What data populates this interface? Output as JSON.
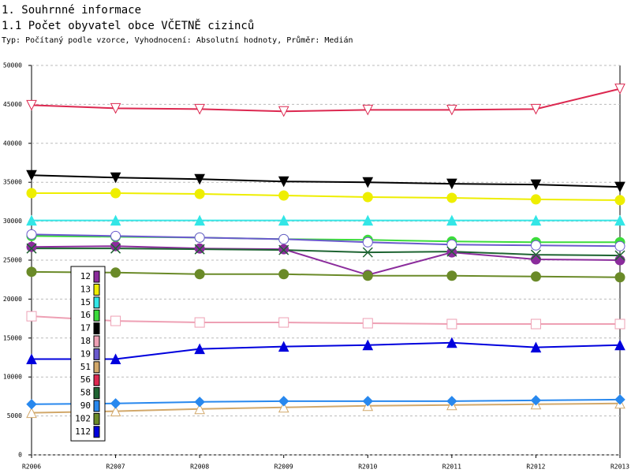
{
  "header": {
    "title": "1. Souhrnné informace",
    "subtitle": "1.1 Počet obyvatel obce VČETNĚ cizinců",
    "note": "Typ: Počítaný podle vzorce, Vyhodnocení: Absolutní hodnoty, Průměr: Medián"
  },
  "chart_data": {
    "type": "line",
    "categories": [
      "R2006",
      "R2007",
      "R2008",
      "R2009",
      "R2010",
      "R2011",
      "R2012",
      "R2013"
    ],
    "ylim": [
      0,
      50000
    ],
    "yticks": [
      0,
      5000,
      10000,
      15000,
      20000,
      25000,
      30000,
      35000,
      40000,
      45000,
      50000
    ],
    "grid": true,
    "legend": "bottom-left",
    "series": [
      {
        "name": "12",
        "color": "#8b2c9c",
        "marker": "circle",
        "values": [
          26700,
          26800,
          26500,
          26400,
          23100,
          26000,
          25100,
          25000
        ]
      },
      {
        "name": "13",
        "color": "#eeee00",
        "marker": "circle",
        "values": [
          33600,
          33600,
          33500,
          33300,
          33100,
          33000,
          32800,
          32700
        ]
      },
      {
        "name": "15",
        "color": "#33e6e6",
        "marker": "triangle-up",
        "values": [
          30100,
          30100,
          30100,
          30100,
          30100,
          30100,
          30100,
          30100
        ]
      },
      {
        "name": "16",
        "color": "#3cdc3c",
        "marker": "circle",
        "values": [
          28100,
          28000,
          27900,
          27700,
          27600,
          27400,
          27300,
          27300
        ]
      },
      {
        "name": "17",
        "color": "#000000",
        "marker": "triangle-down",
        "values": [
          35900,
          35600,
          35400,
          35100,
          35000,
          34800,
          34700,
          34400
        ]
      },
      {
        "name": "18",
        "color": "#eea0b4",
        "marker": "square-open",
        "values": [
          17800,
          17200,
          17000,
          17000,
          16900,
          16800,
          16800,
          16800
        ]
      },
      {
        "name": "19",
        "color": "#6a5acd",
        "marker": "circle-open",
        "values": [
          28300,
          28100,
          27900,
          27700,
          27300,
          27000,
          26900,
          26800
        ]
      },
      {
        "name": "51",
        "color": "#d2a86a",
        "marker": "triangle-up-open",
        "values": [
          5400,
          5600,
          5900,
          6100,
          6300,
          6400,
          6500,
          6600
        ]
      },
      {
        "name": "56",
        "color": "#dc2850",
        "marker": "triangle-down-open",
        "values": [
          44900,
          44500,
          44400,
          44100,
          44300,
          44300,
          44400,
          47000
        ]
      },
      {
        "name": "58",
        "color": "#1e6432",
        "marker": "x",
        "values": [
          26500,
          26500,
          26400,
          26300,
          26000,
          26100,
          25700,
          25600
        ]
      },
      {
        "name": "90",
        "color": "#2888ee",
        "marker": "diamond",
        "values": [
          6500,
          6600,
          6800,
          6900,
          6900,
          6900,
          7000,
          7100
        ]
      },
      {
        "name": "102",
        "color": "#6a8a28",
        "marker": "circle",
        "values": [
          23500,
          23400,
          23200,
          23200,
          23000,
          23000,
          22900,
          22800
        ]
      },
      {
        "name": "112",
        "color": "#0000dd",
        "marker": "triangle-up",
        "values": [
          12300,
          12300,
          13600,
          13900,
          14100,
          14400,
          13800,
          14100
        ]
      }
    ]
  }
}
